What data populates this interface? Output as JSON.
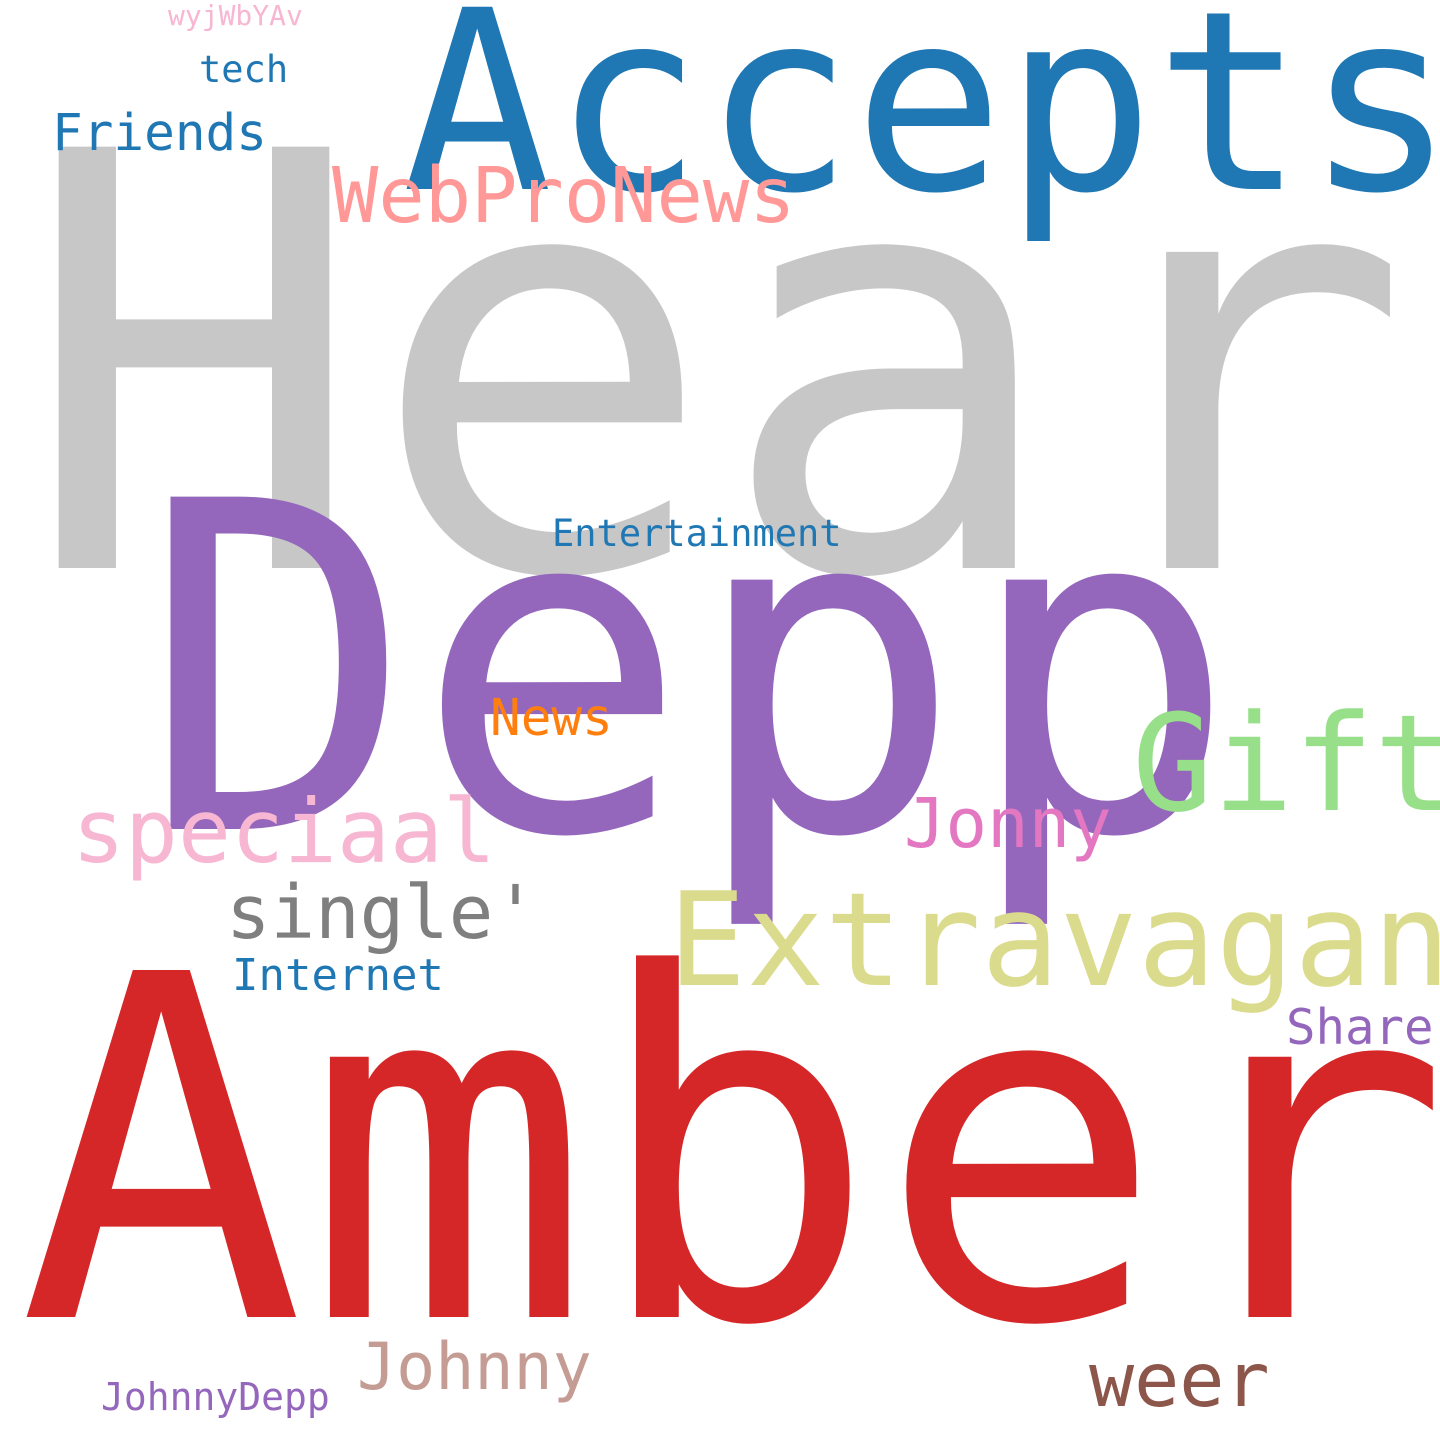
{
  "words": {
    "heard": {
      "text": "Heard",
      "color": "#c7c7c7"
    },
    "accepts": {
      "text": "Accepts",
      "color": "#1f77b4"
    },
    "depp": {
      "text": "Depp",
      "color": "#9467bd"
    },
    "amber": {
      "text": "Amber",
      "color": "#d62728"
    },
    "extravagant": {
      "text": "Extravagant",
      "color": "#dbdb8d"
    },
    "gift": {
      "text": "Gift",
      "color": "#98df8a"
    },
    "webpronews": {
      "text": "WebProNews",
      "color": "#ff9896"
    },
    "speciaal": {
      "text": "speciaal",
      "color": "#f7b6d2"
    },
    "single": {
      "text": "single'",
      "color": "#7f7f7f"
    },
    "jonny": {
      "text": "Jonny",
      "color": "#e377c2"
    },
    "johnny": {
      "text": "Johnny",
      "color": "#c49c94"
    },
    "weer": {
      "text": "weer",
      "color": "#8c564b"
    },
    "friends": {
      "text": "Friends",
      "color": "#1f77b4"
    },
    "news": {
      "text": "News",
      "color": "#ff7f0e"
    },
    "internet": {
      "text": "Internet",
      "color": "#1f77b4"
    },
    "share": {
      "text": "Share",
      "color": "#9467bd"
    },
    "entertainment": {
      "text": "Entertainment",
      "color": "#1f77b4"
    },
    "tech": {
      "text": "tech",
      "color": "#1f77b4"
    },
    "johnnydepp": {
      "text": "JohnnyDepp",
      "color": "#9467bd"
    },
    "wyjwbyav": {
      "text": "wyjWbYAv",
      "color": "#f7b6d2"
    }
  }
}
